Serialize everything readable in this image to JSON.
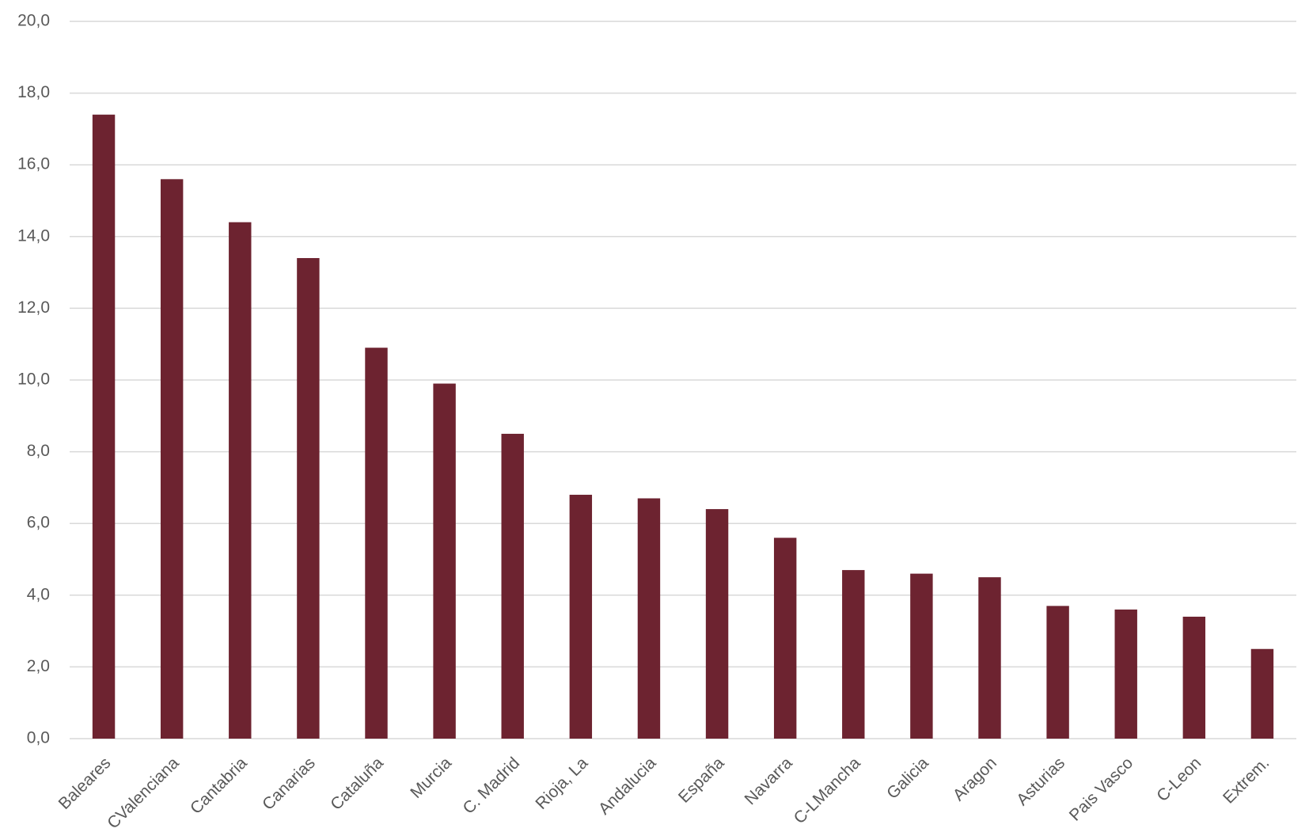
{
  "chart_data": {
    "type": "bar",
    "categories": [
      "Baleares",
      "CValenciana",
      "Cantabria",
      "Canarias",
      "Cataluña",
      "Murcia",
      "C. Madrid",
      "Rioja, La",
      "Andalucia",
      "España",
      "Navarra",
      "C-LMancha",
      "Galicia",
      "Aragon",
      "Asturias",
      "Pais Vasco",
      "C-Leon",
      "Extrem."
    ],
    "values": [
      17.4,
      15.6,
      14.4,
      13.4,
      10.9,
      9.9,
      8.5,
      6.8,
      6.7,
      6.4,
      5.6,
      4.7,
      4.6,
      4.5,
      3.7,
      3.6,
      3.4,
      2.5
    ],
    "color": "#6d2330",
    "ylim": [
      0,
      20
    ],
    "yticks": [
      {
        "value": 0,
        "label": "0,0"
      },
      {
        "value": 2,
        "label": "2,0"
      },
      {
        "value": 4,
        "label": "4,0"
      },
      {
        "value": 6,
        "label": "6,0"
      },
      {
        "value": 8,
        "label": "8,0"
      },
      {
        "value": 10,
        "label": "10,0"
      },
      {
        "value": 12,
        "label": "12,0"
      },
      {
        "value": 14,
        "label": "14,0"
      },
      {
        "value": 16,
        "label": "16,0"
      },
      {
        "value": 18,
        "label": "18,0"
      },
      {
        "value": 20,
        "label": "20,0"
      }
    ],
    "grid": true
  }
}
